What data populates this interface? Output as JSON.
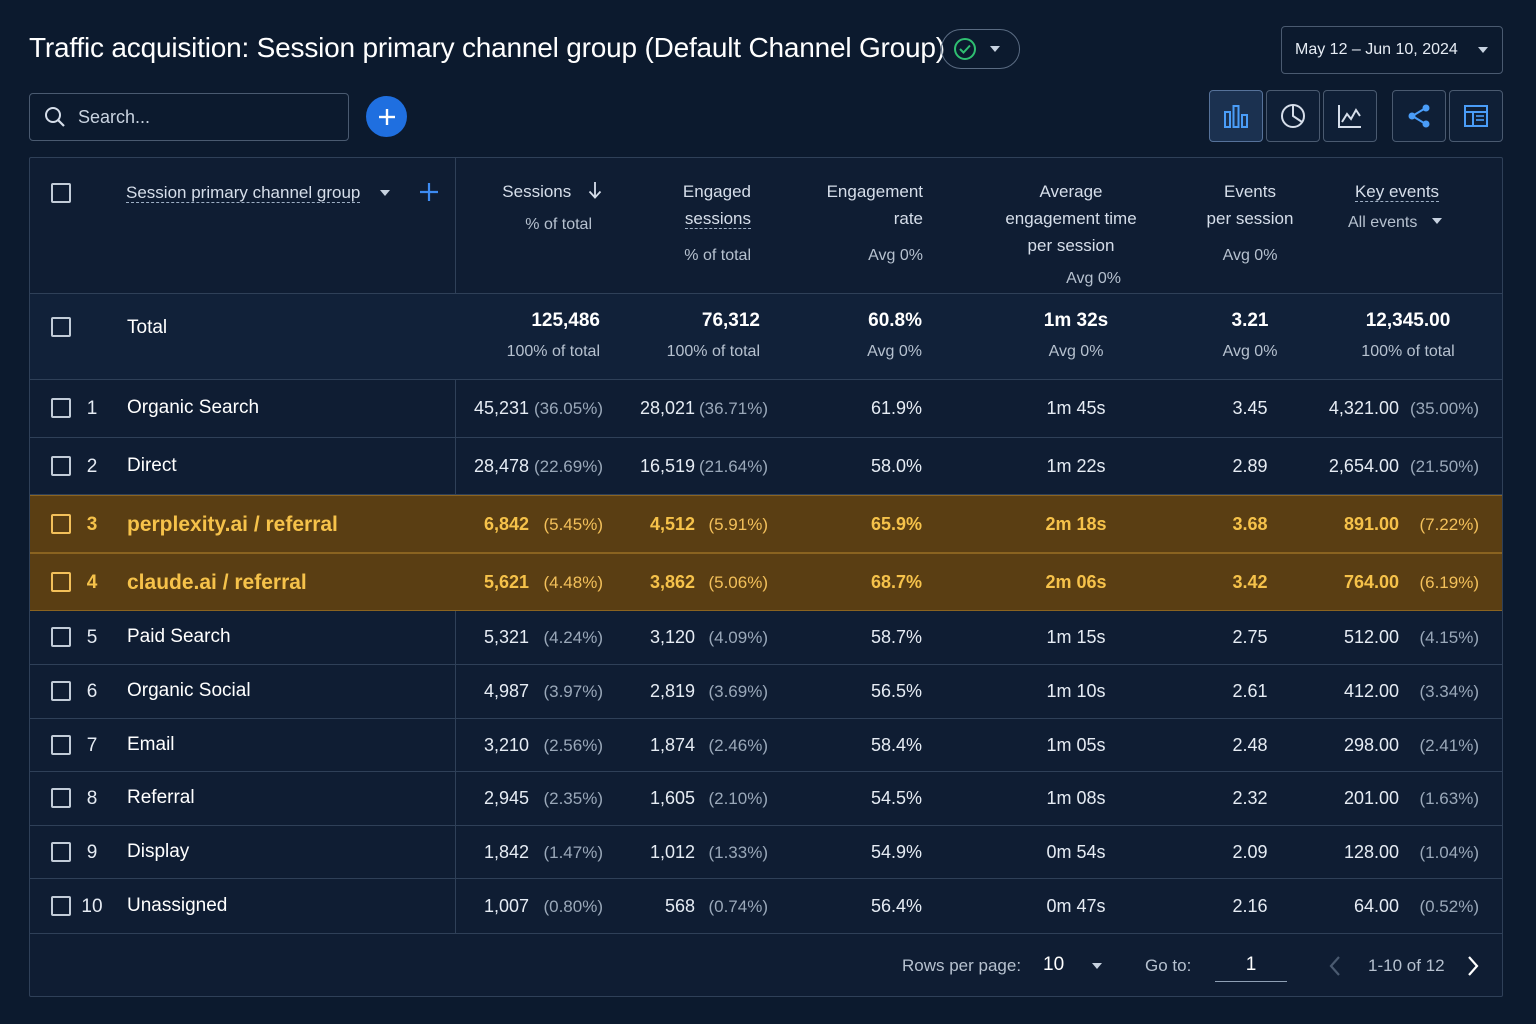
{
  "header": {
    "title": "Traffic acquisition: Session primary channel group (Default Channel Group)",
    "date_range": "May 12 – Jun 10, 2024"
  },
  "search": {
    "placeholder": "Search..."
  },
  "columns": {
    "dimension": "Session primary channel group",
    "sessions": "Sessions",
    "sessions_sub": "% of total",
    "engaged_1": "Engaged",
    "engaged_2": "sessions",
    "engaged_sub": "% of total",
    "er_1": "Engagement",
    "er_2": "rate",
    "er_sub": "Avg 0%",
    "aet_1": "Average",
    "aet_2": "engagement time",
    "aet_3": "per session",
    "aet_sub": "Avg 0%",
    "eps_1": "Events",
    "eps_2": "per session",
    "eps_sub": "Avg 0%",
    "ke": "Key events",
    "ke_sub": "All events"
  },
  "total": {
    "label": "Total",
    "sessions": "125,486",
    "sessions_sub": "100% of total",
    "engaged": "76,312",
    "engaged_sub": "100% of total",
    "er": "60.8%",
    "er_sub": "Avg 0%",
    "aet": "1m 32s",
    "aet_sub": "Avg 0%",
    "eps": "3.21",
    "eps_sub": "Avg 0%",
    "ke": "12,345.00",
    "ke_sub": "100% of total"
  },
  "rows": [
    {
      "idx": "1",
      "channel": "Organic Search",
      "sessions": "45,231",
      "sessions_pct": "(36.05%)",
      "engaged": "28,021",
      "engaged_pct": "(36.71%)",
      "er": "61.9%",
      "aet": "1m 45s",
      "eps": "3.45",
      "ke": "4,321.00",
      "ke_pct": "(35.00%)"
    },
    {
      "idx": "2",
      "channel": "Direct",
      "sessions": "28,478",
      "sessions_pct": "(22.69%)",
      "engaged": "16,519",
      "engaged_pct": "(21.64%)",
      "er": "58.0%",
      "aet": "1m 22s",
      "eps": "2.89",
      "ke": "2,654.00",
      "ke_pct": "(21.50%)"
    },
    {
      "idx": "3",
      "channel": "perplexity.ai / referral",
      "sessions": "6,842",
      "sessions_pct": "(5.45%)",
      "engaged": "4,512",
      "engaged_pct": "(5.91%)",
      "er": "65.9%",
      "aet": "2m 18s",
      "eps": "3.68",
      "ke": "891.00",
      "ke_pct": "(7.22%)"
    },
    {
      "idx": "4",
      "channel": "claude.ai / referral",
      "sessions": "5,621",
      "sessions_pct": "(4.48%)",
      "engaged": "3,862",
      "engaged_pct": "(5.06%)",
      "er": "68.7%",
      "aet": "2m 06s",
      "eps": "3.42",
      "ke": "764.00",
      "ke_pct": "(6.19%)"
    },
    {
      "idx": "5",
      "channel": "Paid Search",
      "sessions": "5,321",
      "sessions_pct": "(4.24%)",
      "engaged": "3,120",
      "engaged_pct": "(4.09%)",
      "er": "58.7%",
      "aet": "1m 15s",
      "eps": "2.75",
      "ke": "512.00",
      "ke_pct": "(4.15%)"
    },
    {
      "idx": "6",
      "channel": "Organic Social",
      "sessions": "4,987",
      "sessions_pct": "(3.97%)",
      "engaged": "2,819",
      "engaged_pct": "(3.69%)",
      "er": "56.5%",
      "aet": "1m 10s",
      "eps": "2.61",
      "ke": "412.00",
      "ke_pct": "(3.34%)"
    },
    {
      "idx": "7",
      "channel": "Email",
      "sessions": "3,210",
      "sessions_pct": "(2.56%)",
      "engaged": "1,874",
      "engaged_pct": "(2.46%)",
      "er": "58.4%",
      "aet": "1m 05s",
      "eps": "2.48",
      "ke": "298.00",
      "ke_pct": "(2.41%)"
    },
    {
      "idx": "8",
      "channel": "Referral",
      "sessions": "2,945",
      "sessions_pct": "(2.35%)",
      "engaged": "1,605",
      "engaged_pct": "(2.10%)",
      "er": "54.5%",
      "aet": "1m 08s",
      "eps": "2.32",
      "ke": "201.00",
      "ke_pct": "(1.63%)"
    },
    {
      "idx": "9",
      "channel": "Display",
      "sessions": "1,842",
      "sessions_pct": "(1.47%)",
      "engaged": "1,012",
      "engaged_pct": "(1.33%)",
      "er": "54.9%",
      "aet": "0m 54s",
      "eps": "2.09",
      "ke": "128.00",
      "ke_pct": "(1.04%)"
    },
    {
      "idx": "10",
      "channel": "Unassigned",
      "sessions": "1,007",
      "sessions_pct": "(0.80%)",
      "engaged": "568",
      "engaged_pct": "(0.74%)",
      "er": "56.4%",
      "aet": "0m 47s",
      "eps": "2.16",
      "ke": "64.00",
      "ke_pct": "(0.52%)"
    }
  ],
  "highlighted_rows": [
    "3",
    "4"
  ],
  "footer": {
    "rows_per_page_label": "Rows per page:",
    "rows_per_page": "10",
    "goto_label": "Go to:",
    "goto_value": "1",
    "range": "1-10 of 12"
  },
  "colors": {
    "background": "#0c1a2e",
    "accent": "#1f6fe0",
    "highlight": "#5a3e13",
    "highlight_text": "#f6c24a",
    "success": "#2fbf71"
  }
}
